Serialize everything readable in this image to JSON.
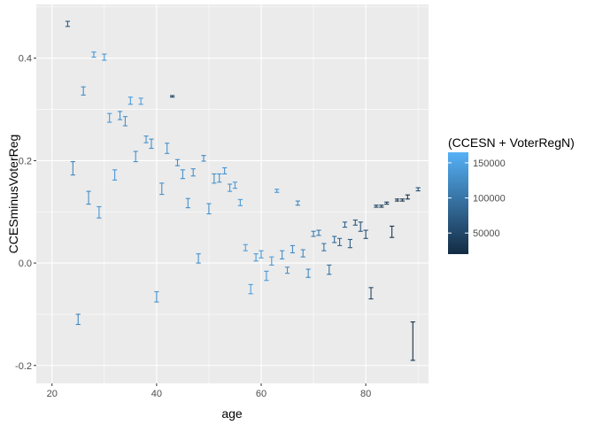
{
  "chart_data": {
    "type": "errorbar",
    "xlabel": "age",
    "ylabel": "CCESminusVoterReg",
    "xlim": [
      17,
      92
    ],
    "ylim": [
      -0.235,
      0.505
    ],
    "xticks": [
      20,
      40,
      60,
      80
    ],
    "yticks": [
      -0.2,
      0.0,
      0.2,
      0.4
    ],
    "ytick_labels": [
      "-0.2",
      "0.0",
      "0.2",
      "0.4"
    ],
    "grid": true,
    "legend": {
      "title": "(CCESN + VoterRegN)",
      "position": "right",
      "type": "colorbar",
      "range": [
        20000,
        165000
      ],
      "ticks": [
        50000,
        100000,
        150000
      ],
      "tick_labels": [
        "50000",
        "100000",
        "150000"
      ],
      "color_low": "#132b43",
      "color_high": "#56b1f7"
    },
    "points": [
      {
        "x": 23,
        "ymin": 0.462,
        "ymax": 0.472,
        "n": 75000
      },
      {
        "x": 24,
        "ymin": 0.172,
        "ymax": 0.198,
        "n": 120000
      },
      {
        "x": 25,
        "ymin": -0.12,
        "ymax": -0.1,
        "n": 120000
      },
      {
        "x": 26,
        "ymin": 0.328,
        "ymax": 0.344,
        "n": 125000
      },
      {
        "x": 27,
        "ymin": 0.115,
        "ymax": 0.14,
        "n": 125000
      },
      {
        "x": 28,
        "ymin": 0.402,
        "ymax": 0.412,
        "n": 135000
      },
      {
        "x": 29,
        "ymin": 0.088,
        "ymax": 0.11,
        "n": 135000
      },
      {
        "x": 30,
        "ymin": 0.396,
        "ymax": 0.408,
        "n": 140000
      },
      {
        "x": 31,
        "ymin": 0.275,
        "ymax": 0.292,
        "n": 140000
      },
      {
        "x": 32,
        "ymin": 0.162,
        "ymax": 0.182,
        "n": 138000
      },
      {
        "x": 33,
        "ymin": 0.28,
        "ymax": 0.296,
        "n": 130000
      },
      {
        "x": 34,
        "ymin": 0.268,
        "ymax": 0.286,
        "n": 130000
      },
      {
        "x": 35,
        "ymin": 0.31,
        "ymax": 0.324,
        "n": 140000
      },
      {
        "x": 36,
        "ymin": 0.198,
        "ymax": 0.218,
        "n": 130000
      },
      {
        "x": 37,
        "ymin": 0.31,
        "ymax": 0.322,
        "n": 145000
      },
      {
        "x": 38,
        "ymin": 0.235,
        "ymax": 0.248,
        "n": 130000
      },
      {
        "x": 39,
        "ymin": 0.224,
        "ymax": 0.242,
        "n": 125000
      },
      {
        "x": 40,
        "ymin": -0.076,
        "ymax": -0.056,
        "n": 130000
      },
      {
        "x": 41,
        "ymin": 0.134,
        "ymax": 0.156,
        "n": 130000
      },
      {
        "x": 42,
        "ymin": 0.214,
        "ymax": 0.234,
        "n": 130000
      },
      {
        "x": 43,
        "ymin": 0.324,
        "ymax": 0.327,
        "n": 50000
      },
      {
        "x": 44,
        "ymin": 0.19,
        "ymax": 0.202,
        "n": 125000
      },
      {
        "x": 45,
        "ymin": 0.165,
        "ymax": 0.182,
        "n": 130000
      },
      {
        "x": 46,
        "ymin": 0.108,
        "ymax": 0.126,
        "n": 130000
      },
      {
        "x": 47,
        "ymin": 0.17,
        "ymax": 0.184,
        "n": 130000
      },
      {
        "x": 48,
        "ymin": 0.0,
        "ymax": 0.018,
        "n": 130000
      },
      {
        "x": 49,
        "ymin": 0.199,
        "ymax": 0.21,
        "n": 125000
      },
      {
        "x": 50,
        "ymin": 0.096,
        "ymax": 0.116,
        "n": 130000
      },
      {
        "x": 51,
        "ymin": 0.156,
        "ymax": 0.174,
        "n": 130000
      },
      {
        "x": 52,
        "ymin": 0.158,
        "ymax": 0.174,
        "n": 130000
      },
      {
        "x": 53,
        "ymin": 0.174,
        "ymax": 0.186,
        "n": 135000
      },
      {
        "x": 54,
        "ymin": 0.14,
        "ymax": 0.154,
        "n": 135000
      },
      {
        "x": 55,
        "ymin": 0.146,
        "ymax": 0.158,
        "n": 140000
      },
      {
        "x": 56,
        "ymin": 0.112,
        "ymax": 0.124,
        "n": 140000
      },
      {
        "x": 57,
        "ymin": 0.024,
        "ymax": 0.036,
        "n": 145000
      },
      {
        "x": 58,
        "ymin": -0.06,
        "ymax": -0.042,
        "n": 145000
      },
      {
        "x": 59,
        "ymin": 0.004,
        "ymax": 0.018,
        "n": 140000
      },
      {
        "x": 60,
        "ymin": 0.01,
        "ymax": 0.024,
        "n": 140000
      },
      {
        "x": 61,
        "ymin": -0.034,
        "ymax": -0.016,
        "n": 140000
      },
      {
        "x": 62,
        "ymin": -0.004,
        "ymax": 0.012,
        "n": 140000
      },
      {
        "x": 63,
        "ymin": 0.138,
        "ymax": 0.144,
        "n": 135000
      },
      {
        "x": 64,
        "ymin": 0.008,
        "ymax": 0.024,
        "n": 130000
      },
      {
        "x": 65,
        "ymin": -0.02,
        "ymax": -0.008,
        "n": 130000
      },
      {
        "x": 66,
        "ymin": 0.02,
        "ymax": 0.034,
        "n": 125000
      },
      {
        "x": 67,
        "ymin": 0.113,
        "ymax": 0.121,
        "n": 120000
      },
      {
        "x": 68,
        "ymin": 0.012,
        "ymax": 0.026,
        "n": 120000
      },
      {
        "x": 69,
        "ymin": -0.028,
        "ymax": -0.012,
        "n": 120000
      },
      {
        "x": 70,
        "ymin": 0.052,
        "ymax": 0.062,
        "n": 110000
      },
      {
        "x": 71,
        "ymin": 0.054,
        "ymax": 0.064,
        "n": 105000
      },
      {
        "x": 72,
        "ymin": 0.024,
        "ymax": 0.038,
        "n": 100000
      },
      {
        "x": 73,
        "ymin": -0.022,
        "ymax": -0.004,
        "n": 95000
      },
      {
        "x": 74,
        "ymin": 0.04,
        "ymax": 0.052,
        "n": 90000
      },
      {
        "x": 75,
        "ymin": 0.034,
        "ymax": 0.048,
        "n": 85000
      },
      {
        "x": 76,
        "ymin": 0.07,
        "ymax": 0.08,
        "n": 80000
      },
      {
        "x": 77,
        "ymin": 0.03,
        "ymax": 0.046,
        "n": 75000
      },
      {
        "x": 78,
        "ymin": 0.074,
        "ymax": 0.084,
        "n": 70000
      },
      {
        "x": 79,
        "ymin": 0.062,
        "ymax": 0.08,
        "n": 65000
      },
      {
        "x": 80,
        "ymin": 0.048,
        "ymax": 0.064,
        "n": 60000
      },
      {
        "x": 81,
        "ymin": -0.07,
        "ymax": -0.048,
        "n": 50000
      },
      {
        "x": 82,
        "ymin": 0.109,
        "ymax": 0.113,
        "n": 45000
      },
      {
        "x": 83,
        "ymin": 0.109,
        "ymax": 0.113,
        "n": 40000
      },
      {
        "x": 84,
        "ymin": 0.115,
        "ymax": 0.119,
        "n": 38000
      },
      {
        "x": 85,
        "ymin": 0.05,
        "ymax": 0.072,
        "n": 35000
      },
      {
        "x": 86,
        "ymin": 0.121,
        "ymax": 0.125,
        "n": 32000
      },
      {
        "x": 87,
        "ymin": 0.121,
        "ymax": 0.125,
        "n": 30000
      },
      {
        "x": 88,
        "ymin": 0.125,
        "ymax": 0.133,
        "n": 28000
      },
      {
        "x": 89,
        "ymin": -0.19,
        "ymax": -0.115,
        "n": 25000
      },
      {
        "x": 90,
        "ymin": 0.141,
        "ymax": 0.147,
        "n": 60000
      }
    ]
  }
}
